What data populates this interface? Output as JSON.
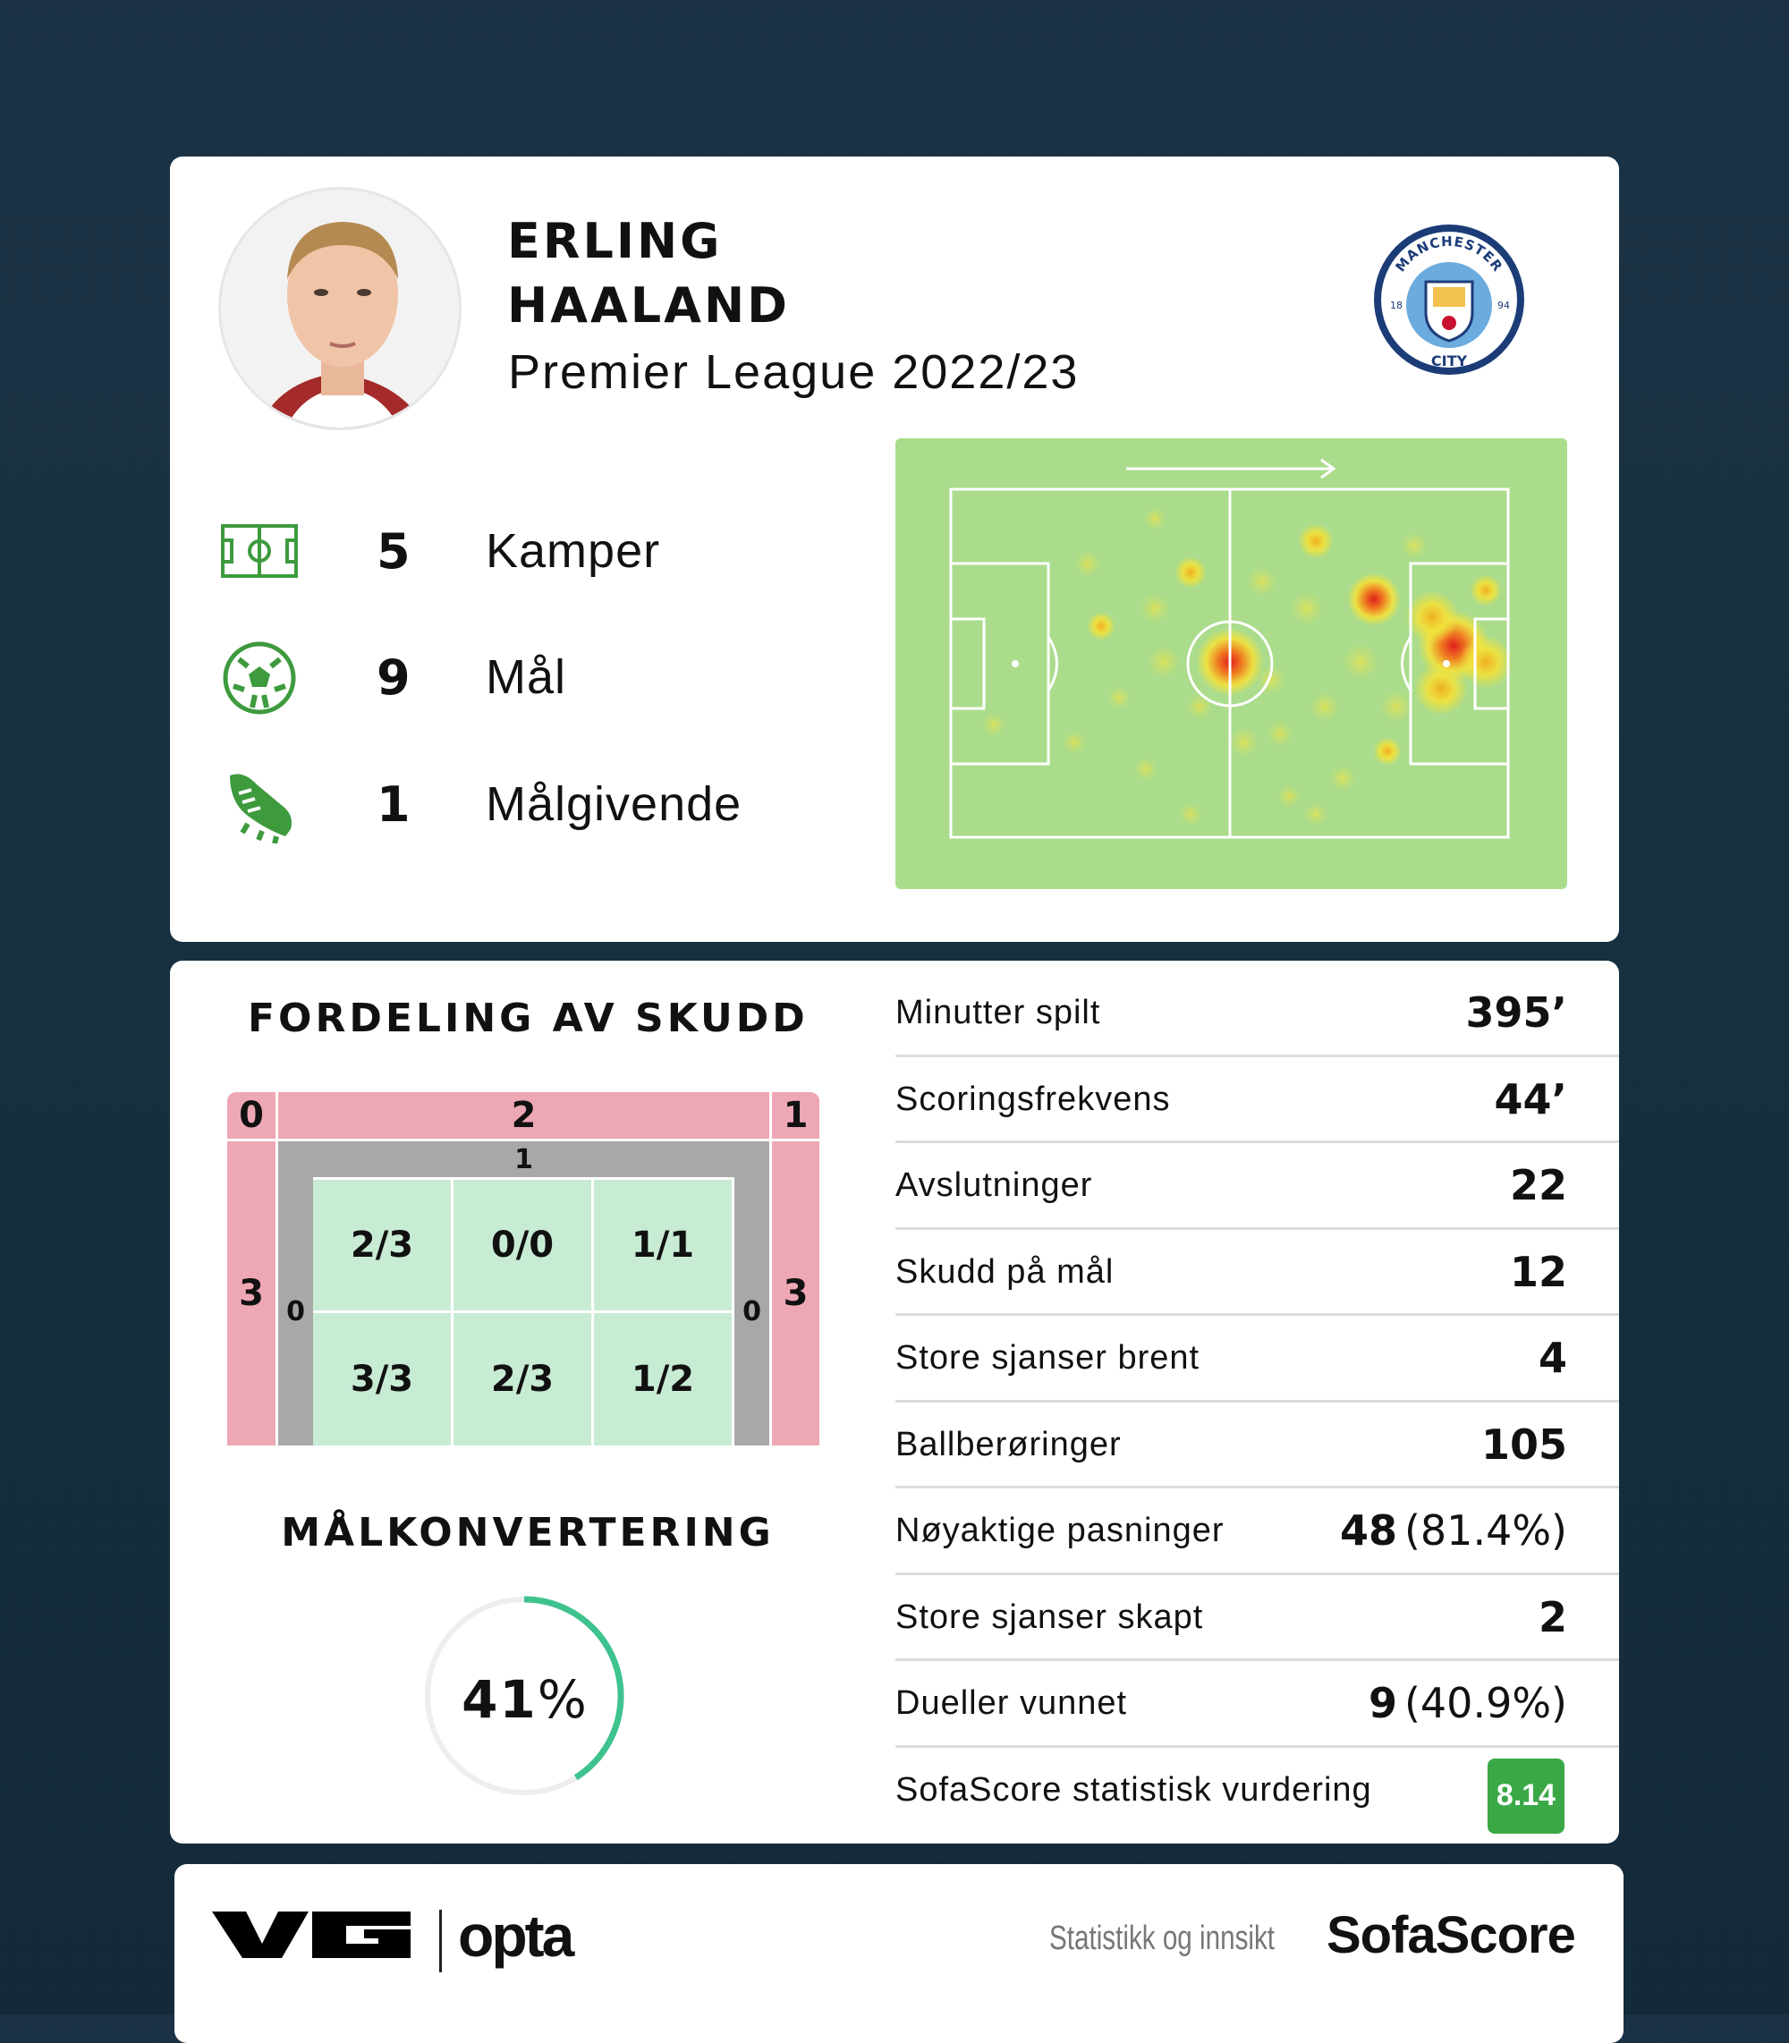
{
  "player": {
    "first_name": "ERLING",
    "last_name": "HAALAND",
    "competition": "Premier League 2022/23"
  },
  "club": {
    "name": "MANCHESTER CITY",
    "badge_text_top": "MANCHESTER",
    "badge_text_bottom": "CITY",
    "badge_left": "18",
    "badge_right": "94"
  },
  "summary": [
    {
      "icon": "pitch-icon",
      "value": "5",
      "label": "Kamper"
    },
    {
      "icon": "football-icon",
      "value": "9",
      "label": "Mål"
    },
    {
      "icon": "boot-icon",
      "value": "1",
      "label": "Målgivende"
    }
  ],
  "heatmap": {
    "direction": "attack-right",
    "colors": {
      "pitch": "#aadc8c",
      "low": "#f0e040",
      "high": "#e02020"
    }
  },
  "shots": {
    "title": "FORDELING AV SKUDD",
    "outer": {
      "top_left": "0",
      "top": "2",
      "top_right": "1",
      "left": "3",
      "right": "3"
    },
    "post": {
      "top": "1",
      "left": "0",
      "right": "0"
    },
    "goal": [
      [
        "2/3",
        "0/0",
        "1/1"
      ],
      [
        "3/3",
        "2/3",
        "1/2"
      ]
    ]
  },
  "conversion": {
    "title": "MÅLKONVERTERING",
    "value": "41",
    "unit": "%",
    "fraction": 0.41,
    "color": "#3ec28e"
  },
  "stats": [
    {
      "label": "Minutter spilt",
      "value": "395’",
      "pct": ""
    },
    {
      "label": "Scoringsfrekvens",
      "value": "44’",
      "pct": ""
    },
    {
      "label": "Avslutninger",
      "value": "22",
      "pct": ""
    },
    {
      "label": "Skudd på mål",
      "value": "12",
      "pct": ""
    },
    {
      "label": "Store sjanser brent",
      "value": "4",
      "pct": ""
    },
    {
      "label": "Ballberøringer",
      "value": "105",
      "pct": ""
    },
    {
      "label": "Nøyaktige pasninger",
      "value": "48",
      "pct": "(81.4%)"
    },
    {
      "label": "Store sjanser skapt",
      "value": "2",
      "pct": ""
    },
    {
      "label": "Dueller vunnet",
      "value": "9",
      "pct": "(40.9%)"
    },
    {
      "label": "SofaScore statistisk vurdering",
      "value": "8.14",
      "pct": "",
      "badge_color": "#3aa845"
    }
  ],
  "footer": {
    "vg": "VG",
    "opta": "opta",
    "tagline": "Statistikk og innsikt",
    "sofascore": "SofaScore"
  }
}
